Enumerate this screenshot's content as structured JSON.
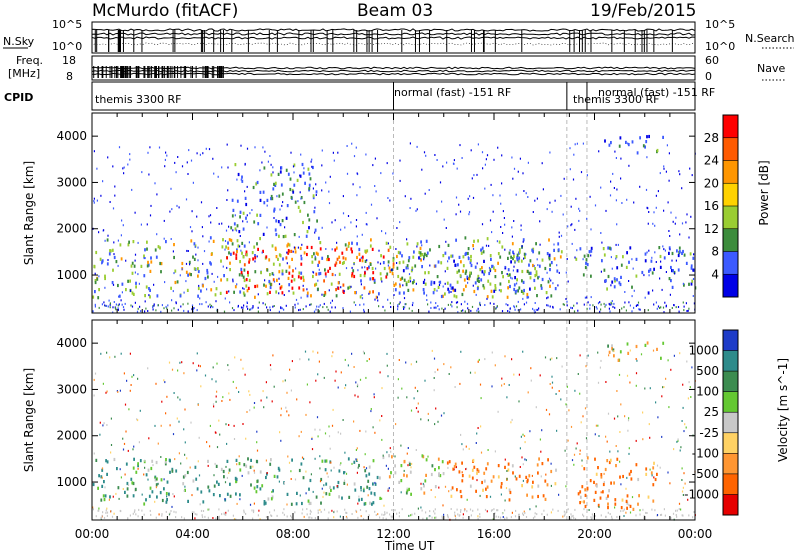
{
  "header": {
    "station": "McMurdo (fitACF)",
    "beam": "Beam 03",
    "date": "19/Feb/2015"
  },
  "top_panels": {
    "nsky_label": "N.Sky",
    "nsky_ticks": [
      "10^5",
      "10^0"
    ],
    "nsearch_label": "N.Search",
    "nsearch_ticks": [
      "10^5",
      "10^0"
    ],
    "freq_label": "Freq.",
    "freq_unit": "[MHz]",
    "freq_ticks": [
      "18",
      "8"
    ],
    "nave_label": "Nave",
    "nave_ticks": [
      "60",
      "0"
    ],
    "cpid_label": "CPID",
    "cpid_segments": [
      {
        "label": "themis 3300 RF",
        "start_hr": 0.0,
        "end_hr": 12.0
      },
      {
        "label": "normal (fast) -151 RF",
        "start_hr": 12.0,
        "end_hr": 18.9
      },
      {
        "label": "themis 3300 RF",
        "start_hr": 18.9,
        "end_hr": 19.7
      },
      {
        "label": "normal (fast) -151 RF",
        "start_hr": 19.7,
        "end_hr": 24.0
      }
    ]
  },
  "chart_data": [
    {
      "type": "heatmap",
      "title": "Power",
      "xlabel": "",
      "ylabel": "Slant Range [km]",
      "xlim_hours": [
        0,
        24
      ],
      "ylim": [
        180,
        4500
      ],
      "y_ticks": [
        1000,
        2000,
        3000,
        4000
      ],
      "colorbar": {
        "label": "Power [dB]",
        "ticks": [
          "28",
          "24",
          "20",
          "16",
          "12",
          "8",
          "4"
        ],
        "colors": [
          "#ff0000",
          "#ff5a00",
          "#ff9600",
          "#ffd200",
          "#9acd32",
          "#3c8c3c",
          "#3c5aff",
          "#0000e6"
        ]
      },
      "scatter_regions": [
        {
          "t0": 0.0,
          "t1": 18.7,
          "r0": 500,
          "r1": 1800,
          "level": "strong"
        },
        {
          "t0": 5.3,
          "t1": 12.0,
          "r0": 600,
          "r1": 1600,
          "level": "peak"
        },
        {
          "t0": 5.5,
          "t1": 9.0,
          "r0": 1800,
          "r1": 3400,
          "level": "medium"
        },
        {
          "t0": 12.0,
          "t1": 18.5,
          "r0": 600,
          "r1": 1500,
          "level": "medium"
        },
        {
          "t0": 19.2,
          "t1": 24.0,
          "r0": 600,
          "r1": 1600,
          "level": "medium"
        },
        {
          "t0": 20.3,
          "t1": 22.8,
          "r0": 3600,
          "r1": 4000,
          "level": "medium"
        }
      ]
    },
    {
      "type": "heatmap",
      "title": "Velocity",
      "xlabel": "Time UT",
      "ylabel": "Slant Range [km]",
      "xlim_hours": [
        0,
        24
      ],
      "ylim": [
        180,
        4500
      ],
      "y_ticks": [
        1000,
        2000,
        3000,
        4000
      ],
      "x_ticks": [
        "00:00",
        "04:00",
        "08:00",
        "12:00",
        "16:00",
        "20:00",
        "00:00"
      ],
      "colorbar": {
        "label": "Velocity [m s^-1]",
        "ticks": [
          "1000",
          "500",
          "100",
          "25",
          "-25",
          "-100",
          "-500",
          "-1000"
        ],
        "colors": [
          "#1e3cc8",
          "#2e8b8b",
          "#3c8c50",
          "#64c832",
          "#c8c8c8",
          "#ffd264",
          "#ff9632",
          "#ff6400",
          "#e60000"
        ]
      },
      "scatter_regions": [
        {
          "t0": 0.0,
          "t1": 5.3,
          "r0": 500,
          "r1": 1500,
          "level": "toward"
        },
        {
          "t0": 5.3,
          "t1": 11.5,
          "r0": 500,
          "r1": 1500,
          "level": "toward"
        },
        {
          "t0": 11.5,
          "t1": 14.0,
          "r0": 700,
          "r1": 1600,
          "level": "mixed"
        },
        {
          "t0": 14.0,
          "t1": 18.5,
          "r0": 600,
          "r1": 1500,
          "level": "away"
        },
        {
          "t0": 19.3,
          "t1": 22.5,
          "r0": 400,
          "r1": 1600,
          "level": "away"
        },
        {
          "t0": 20.5,
          "t1": 22.8,
          "r0": 3600,
          "r1": 4000,
          "level": "mixed"
        }
      ]
    }
  ]
}
